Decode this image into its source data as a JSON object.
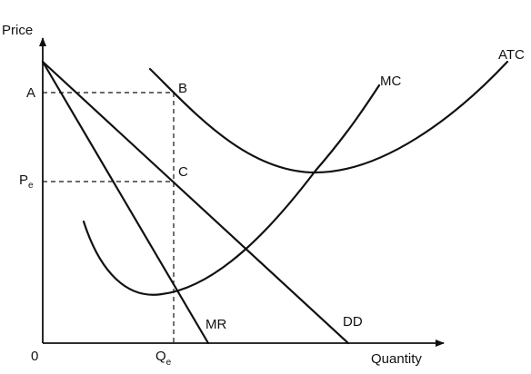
{
  "axes": {
    "y_label": "Price",
    "x_label": "Quantity",
    "origin_label": "0"
  },
  "price_labels": {
    "a": "A",
    "pe_main": "P",
    "pe_sub": "e"
  },
  "quantity_labels": {
    "qe_main": "Q",
    "qe_sub": "e"
  },
  "points": {
    "b": "B",
    "c": "C"
  },
  "curves": {
    "atc": "ATC",
    "mc": "MC",
    "mr": "MR",
    "dd": "DD"
  }
}
